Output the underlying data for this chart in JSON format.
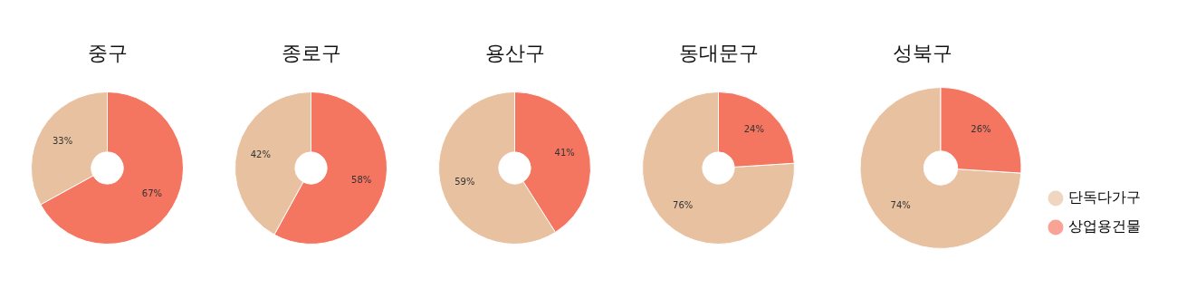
{
  "chart_data": [
    {
      "type": "donut",
      "title": "중구",
      "categories": [
        null,
        null
      ],
      "values": [
        33,
        67
      ],
      "colors": [
        "#e8c1a0",
        "#f47560"
      ],
      "value_labels": [
        "33%",
        "67%"
      ]
    },
    {
      "type": "donut",
      "title": "종로구",
      "categories": [
        null,
        null
      ],
      "values": [
        42,
        58
      ],
      "colors": [
        "#e8c1a0",
        "#f47560"
      ],
      "value_labels": [
        "42%",
        "58%"
      ]
    },
    {
      "type": "donut",
      "title": "용산구",
      "categories": [
        null,
        null
      ],
      "values": [
        59,
        41
      ],
      "colors": [
        "#e8c1a0",
        "#f47560"
      ],
      "value_labels": [
        "59%",
        "41%"
      ]
    },
    {
      "type": "donut",
      "title": "동대문구",
      "categories": [
        null,
        null
      ],
      "values": [
        76,
        24
      ],
      "colors": [
        "#e8c1a0",
        "#f47560"
      ],
      "value_labels": [
        "76%",
        "24%"
      ]
    },
    {
      "type": "donut",
      "title": "성북구",
      "categories": [
        "단독다가구",
        "상업용건물"
      ],
      "values": [
        74,
        26
      ],
      "colors": [
        "#e8c1a0",
        "#f47560"
      ],
      "value_labels": [
        "74%",
        "26%"
      ],
      "legend": "bottom right"
    }
  ]
}
